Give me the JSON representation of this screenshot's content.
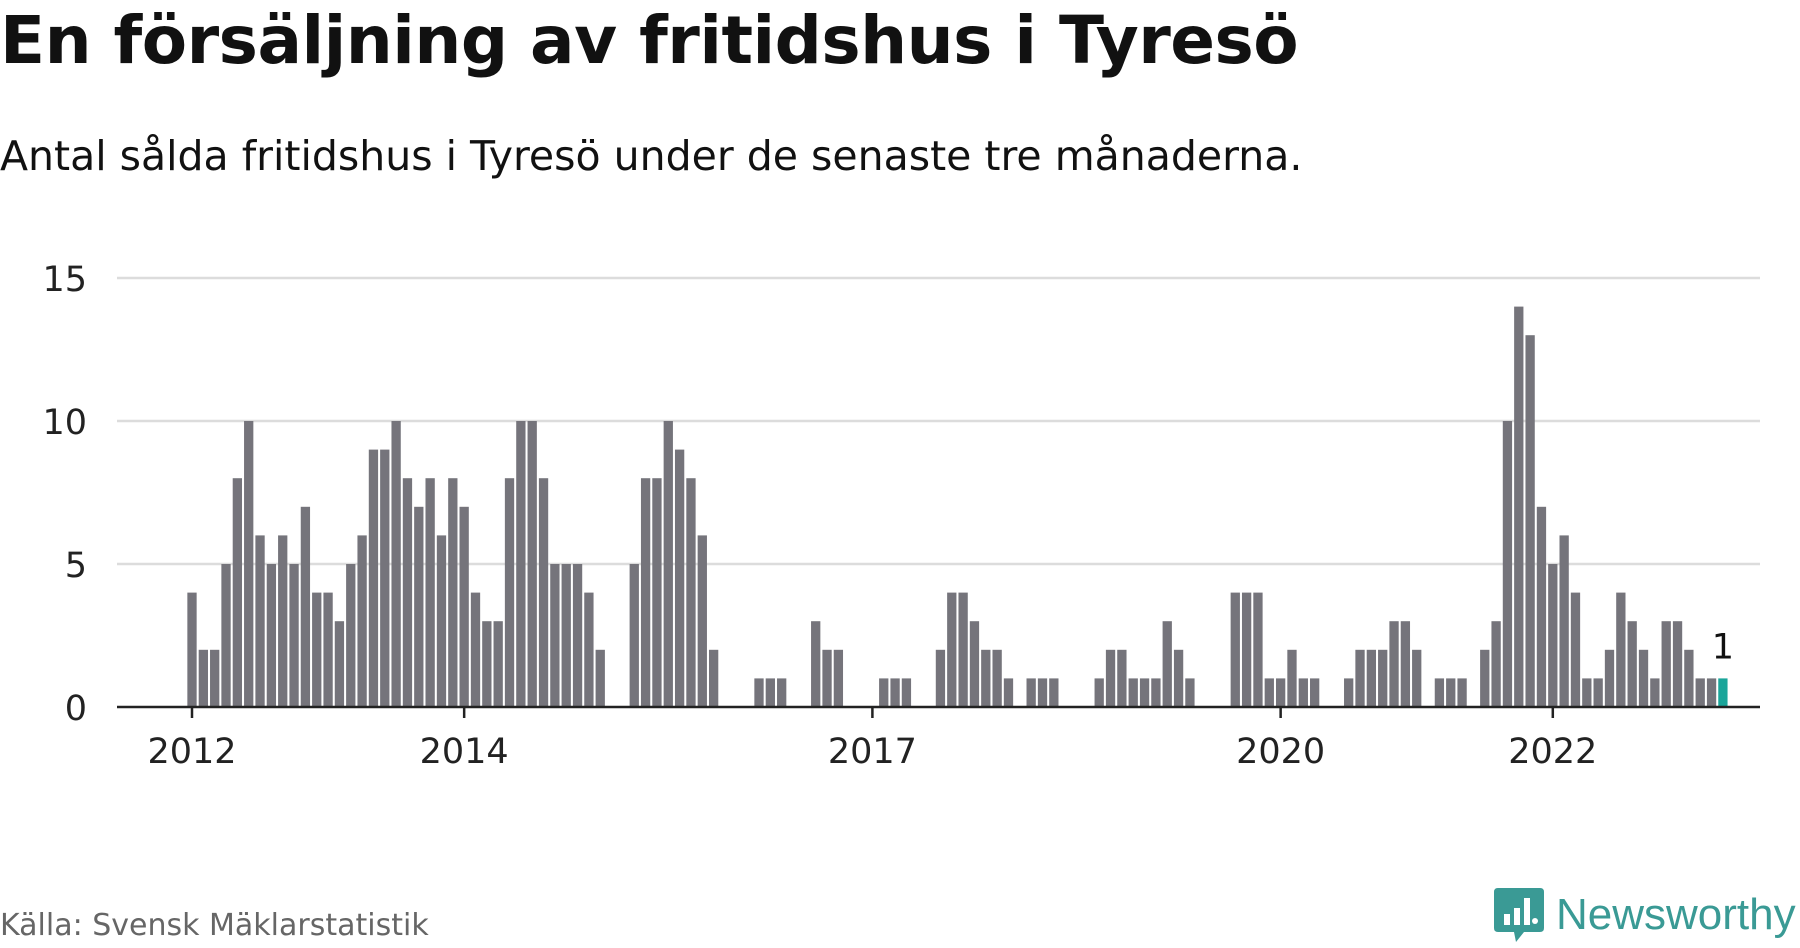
{
  "title": "En försäljning av fritidshus i Tyresö",
  "subtitle": "Antal sålda fritidshus i Tyresö under de senaste tre månaderna.",
  "source": "Källa: Svensk Mäklarstatistik",
  "brand": {
    "name": "Newsworthy",
    "icon": "newsworthy-logo-icon",
    "color": "#3a9a95"
  },
  "colors": {
    "bar": "#75747b",
    "highlight": "#1aa59a",
    "grid": "#dcdcdc",
    "axis": "#222222",
    "text": "#222222"
  },
  "chart_data": {
    "type": "bar",
    "title": "En försäljning av fritidshus i Tyresö",
    "xlabel": "",
    "ylabel": "",
    "ylim": [
      0,
      15
    ],
    "yticks": [
      0,
      5,
      10,
      15
    ],
    "xticks": [
      {
        "label": "2012",
        "index": 0
      },
      {
        "label": "2014",
        "index": 24
      },
      {
        "label": "2017",
        "index": 60
      },
      {
        "label": "2020",
        "index": 96
      },
      {
        "label": "2022",
        "index": 120
      }
    ],
    "grid": true,
    "start_period": "2012-01",
    "values": [
      4,
      2,
      2,
      5,
      8,
      10,
      6,
      5,
      6,
      5,
      7,
      4,
      4,
      3,
      5,
      6,
      9,
      9,
      10,
      8,
      7,
      8,
      6,
      8,
      7,
      4,
      3,
      3,
      8,
      10,
      10,
      8,
      5,
      5,
      5,
      4,
      2,
      0,
      0,
      5,
      8,
      8,
      10,
      9,
      8,
      6,
      2,
      0,
      0,
      0,
      1,
      1,
      1,
      0,
      0,
      3,
      2,
      2,
      0,
      0,
      0,
      1,
      1,
      1,
      0,
      0,
      2,
      4,
      4,
      3,
      2,
      2,
      1,
      0,
      1,
      1,
      1,
      0,
      0,
      0,
      1,
      2,
      2,
      1,
      1,
      1,
      3,
      2,
      1,
      0,
      0,
      0,
      4,
      4,
      4,
      1,
      1,
      2,
      1,
      1,
      0,
      0,
      1,
      2,
      2,
      2,
      3,
      3,
      2,
      0,
      1,
      1,
      1,
      0,
      2,
      3,
      10,
      14,
      13,
      7,
      5,
      6,
      4,
      1,
      1,
      2,
      4,
      3,
      2,
      1,
      3,
      3,
      2,
      1,
      1,
      1
    ],
    "highlight_last": true,
    "last_label": "1"
  }
}
